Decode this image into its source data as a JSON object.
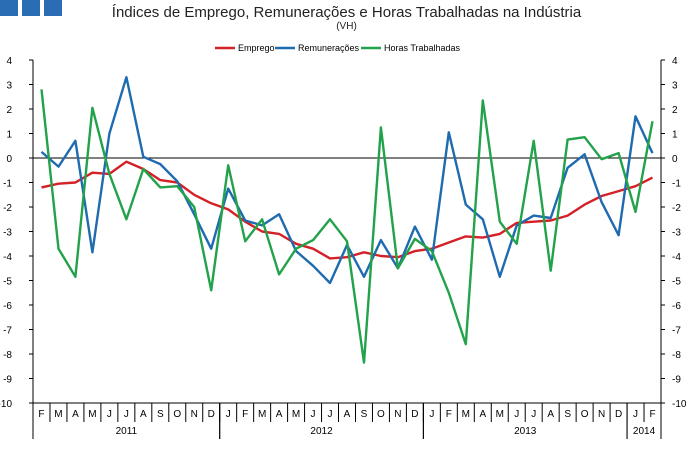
{
  "title": "Índices de Emprego, Remunerações e Horas Trabalhadas na Indústria",
  "subtitle": "(VH)",
  "logo_color": "#2a6db5",
  "chart_data": {
    "type": "line",
    "title": "Índices de Emprego, Remunerações e Horas Trabalhadas na Indústria",
    "subtitle": "(VH)",
    "ylim": [
      -10,
      4
    ],
    "yticks": [
      4,
      3,
      2,
      1,
      0,
      -1,
      -2,
      -3,
      -4,
      -5,
      -6,
      -7,
      -8,
      -9,
      -10
    ],
    "categories": [
      "F",
      "M",
      "A",
      "M",
      "J",
      "J",
      "A",
      "S",
      "O",
      "N",
      "D",
      "J",
      "F",
      "M",
      "A",
      "M",
      "J",
      "J",
      "A",
      "S",
      "O",
      "N",
      "D",
      "J",
      "F",
      "M",
      "A",
      "M",
      "J",
      "J",
      "A",
      "S",
      "O",
      "N",
      "D",
      "J",
      "F"
    ],
    "years": [
      {
        "label": "2011",
        "start": 0,
        "end": 10
      },
      {
        "label": "2012",
        "start": 11,
        "end": 22
      },
      {
        "label": "2013",
        "start": 23,
        "end": 34
      },
      {
        "label": "2014",
        "start": 35,
        "end": 36
      }
    ],
    "legend_position": "top-center",
    "series": [
      {
        "name": "Emprego",
        "color": "#d42027",
        "values": [
          -1.2,
          -1.05,
          -1.0,
          -0.6,
          -0.65,
          -0.15,
          -0.45,
          -0.9,
          -1.0,
          -1.5,
          -1.85,
          -2.1,
          -2.6,
          -3.0,
          -3.1,
          -3.5,
          -3.7,
          -4.1,
          -4.05,
          -3.85,
          -4.0,
          -4.05,
          -3.8,
          -3.7,
          -3.45,
          -3.2,
          -3.25,
          -3.1,
          -2.65,
          -2.6,
          -2.55,
          -2.35,
          -1.9,
          -1.55,
          -1.35,
          -1.15,
          -0.8
        ]
      },
      {
        "name": "Remunerações",
        "color": "#1f6bb0",
        "values": [
          0.25,
          -0.35,
          0.7,
          -3.85,
          1.0,
          3.3,
          0.05,
          -0.25,
          -0.95,
          -2.3,
          -3.7,
          -1.25,
          -2.55,
          -2.75,
          -2.3,
          -3.8,
          -4.4,
          -5.1,
          -3.55,
          -4.85,
          -3.35,
          -4.5,
          -2.8,
          -4.15,
          1.05,
          -1.9,
          -2.5,
          -4.85,
          -2.75,
          -2.35,
          -2.45,
          -0.4,
          0.15,
          -1.8,
          -3.15,
          1.7,
          0.2
        ]
      },
      {
        "name": "Horas Trabalhadas",
        "color": "#22a24a",
        "values": [
          2.8,
          -3.7,
          -4.85,
          2.05,
          -0.65,
          -2.5,
          -0.45,
          -1.2,
          -1.15,
          -2.0,
          -5.4,
          -0.3,
          -3.4,
          -2.5,
          -4.75,
          -3.7,
          -3.35,
          -2.5,
          -3.4,
          -8.35,
          1.25,
          -4.5,
          -3.3,
          -3.8,
          -5.5,
          -7.6,
          2.35,
          -2.6,
          -3.5,
          0.7,
          -4.6,
          0.75,
          0.85,
          -0.05,
          0.2,
          -2.2,
          1.5
        ]
      }
    ]
  }
}
